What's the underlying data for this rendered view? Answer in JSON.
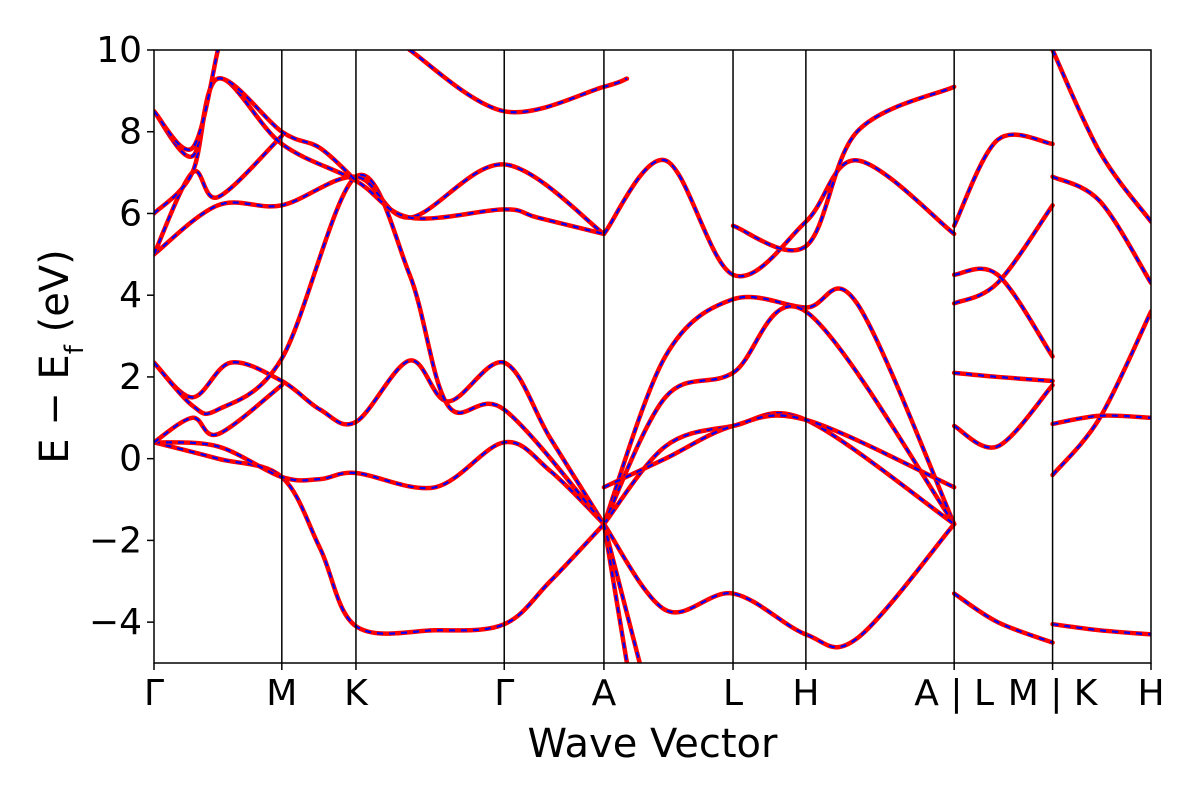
{
  "chart_data": {
    "type": "line",
    "title": "",
    "xlabel": "Wave Vector",
    "ylabel_main": "E − E",
    "ylabel_sub": "f",
    "ylabel_unit": " (eV)",
    "ylim": [
      -5,
      10
    ],
    "yticks": [
      -4,
      -2,
      0,
      2,
      4,
      6,
      8,
      10
    ],
    "ytick_labels": [
      "−4",
      "−2",
      "0",
      "2",
      "4",
      "6",
      "8",
      "10"
    ],
    "grid": false,
    "legend": "none",
    "kpath_ticks": [
      0,
      1.0,
      1.58,
      2.74,
      3.52,
      4.53,
      5.1,
      6.26,
      7.03,
      7.8
    ],
    "kpath_labels": [
      "Γ",
      "M",
      "K",
      "Γ",
      "A",
      "L",
      "H",
      "A | L",
      "M | K",
      "H"
    ],
    "xlim": [
      0,
      7.8
    ],
    "colors": {
      "line_red": "#ff0000",
      "line_blue": "#0000ff",
      "axis": "#000000"
    },
    "series_note_style": "each band drawn as solid red line overlaid with dashed blue line",
    "bands": [
      {
        "x": [
          0,
          0.5,
          1.0,
          1.3,
          1.58,
          2.2,
          2.74,
          3.1,
          3.52
        ],
        "y": [
          0.4,
          0.0,
          -0.45,
          -2.2,
          -4.1,
          -4.2,
          -4.05,
          -3.0,
          -1.6
        ]
      },
      {
        "x": [
          0,
          0.5,
          1.0,
          1.3,
          1.58,
          2.2,
          2.74,
          3.1,
          3.52
        ],
        "y": [
          0.4,
          0.3,
          -0.45,
          -0.5,
          -0.35,
          -0.7,
          0.4,
          -0.3,
          -1.6
        ]
      },
      {
        "x": [
          0,
          0.3,
          0.6,
          1.0,
          1.3,
          1.58,
          2.0,
          2.3,
          2.74,
          3.1,
          3.52
        ],
        "y": [
          2.35,
          1.5,
          2.35,
          1.9,
          1.2,
          0.9,
          2.4,
          1.4,
          2.35,
          0.5,
          -1.6
        ]
      },
      {
        "x": [
          0,
          0.3,
          0.5,
          1.0,
          1.58,
          2.0,
          2.3,
          2.74,
          3.52
        ],
        "y": [
          2.35,
          1.3,
          1.2,
          2.45,
          6.9,
          4.5,
          1.3,
          1.2,
          -1.6
        ]
      },
      {
        "x": [
          0,
          0.3,
          0.5,
          1.0
        ],
        "y": [
          0.4,
          1.0,
          0.6,
          1.8
        ]
      },
      {
        "x": [
          0,
          0.5,
          1.0,
          1.58,
          2.0,
          2.74,
          3.52
        ],
        "y": [
          5.0,
          6.2,
          6.2,
          6.9,
          5.9,
          7.2,
          5.5
        ]
      },
      {
        "x": [
          0,
          0.3,
          0.5,
          1.0
        ],
        "y": [
          5.0,
          7.0,
          6.4,
          7.9
        ]
      },
      {
        "x": [
          0,
          0.3,
          0.5,
          1.0,
          1.58,
          2.0,
          2.74,
          3.0,
          3.52
        ],
        "y": [
          6.0,
          7.0,
          9.3,
          7.7,
          6.8,
          5.9,
          6.1,
          5.9,
          5.5
        ]
      },
      {
        "x": [
          0,
          0.3,
          0.5,
          1.0,
          1.3,
          1.58
        ],
        "y": [
          8.5,
          7.4,
          9.3,
          8.0,
          7.6,
          6.8
        ]
      },
      {
        "x": [
          0,
          0.3,
          0.5
        ],
        "y": [
          8.5,
          7.6,
          10.0
        ]
      },
      {
        "x": [
          2.0,
          2.74,
          3.52,
          3.7
        ],
        "y": [
          10.0,
          8.5,
          9.1,
          9.3
        ]
      },
      {
        "x": [
          3.52,
          4.0,
          4.53,
          5.1,
          5.5,
          6.26
        ],
        "y": [
          -1.6,
          2.5,
          3.9,
          3.7,
          3.8,
          -1.6
        ]
      },
      {
        "x": [
          3.52,
          4.0,
          4.53,
          5.1,
          6.26
        ],
        "y": [
          -1.6,
          1.5,
          2.1,
          3.6,
          -1.6
        ]
      },
      {
        "x": [
          3.52,
          4.0,
          4.53,
          5.1,
          6.26
        ],
        "y": [
          -1.6,
          0.3,
          0.8,
          0.95,
          -1.6
        ]
      },
      {
        "x": [
          3.52,
          4.0,
          4.53,
          5.1,
          6.26
        ],
        "y": [
          -0.7,
          0.0,
          0.8,
          0.95,
          -0.7
        ]
      },
      {
        "x": [
          3.52,
          4.0,
          4.53,
          5.1,
          5.5,
          6.26
        ],
        "y": [
          -1.6,
          -3.7,
          -3.3,
          -4.3,
          -4.4,
          -1.6
        ]
      },
      {
        "x": [
          3.52,
          4.0,
          4.53,
          5.1,
          5.5,
          6.26
        ],
        "y": [
          5.5,
          7.3,
          4.5,
          5.8,
          7.3,
          5.5
        ]
      },
      {
        "x": [
          4.53,
          5.1,
          5.5,
          6.26
        ],
        "y": [
          5.7,
          5.2,
          8.0,
          9.1
        ]
      },
      {
        "x": [
          3.52,
          3.7
        ],
        "y": [
          -1.6,
          -5.0
        ]
      },
      {
        "x": [
          3.52,
          3.8
        ],
        "y": [
          -1.6,
          -5.0
        ]
      },
      {
        "x": [
          6.26,
          6.6,
          7.03
        ],
        "y": [
          5.7,
          7.8,
          7.7
        ]
      },
      {
        "x": [
          6.26,
          6.6,
          7.03
        ],
        "y": [
          3.8,
          4.3,
          6.2
        ]
      },
      {
        "x": [
          6.26,
          6.6,
          7.03
        ],
        "y": [
          4.5,
          4.5,
          2.5
        ]
      },
      {
        "x": [
          6.26,
          6.6,
          7.03
        ],
        "y": [
          2.1,
          2.0,
          1.9
        ]
      },
      {
        "x": [
          6.26,
          6.6,
          7.03
        ],
        "y": [
          0.8,
          0.3,
          1.8
        ]
      },
      {
        "x": [
          6.26,
          6.6,
          7.03
        ],
        "y": [
          -3.3,
          -4.0,
          -4.5
        ]
      },
      {
        "x": [
          7.03,
          7.4,
          7.8
        ],
        "y": [
          6.9,
          6.3,
          4.3
        ]
      },
      {
        "x": [
          7.03,
          7.4,
          7.8
        ],
        "y": [
          -0.4,
          1.0,
          3.6
        ]
      },
      {
        "x": [
          7.03,
          7.4,
          7.8
        ],
        "y": [
          0.85,
          1.05,
          1.0
        ]
      },
      {
        "x": [
          7.03,
          7.4,
          7.8
        ],
        "y": [
          -4.05,
          -4.2,
          -4.3
        ]
      },
      {
        "x": [
          7.03,
          7.4,
          7.8
        ],
        "y": [
          10.0,
          7.5,
          5.8
        ]
      }
    ]
  }
}
